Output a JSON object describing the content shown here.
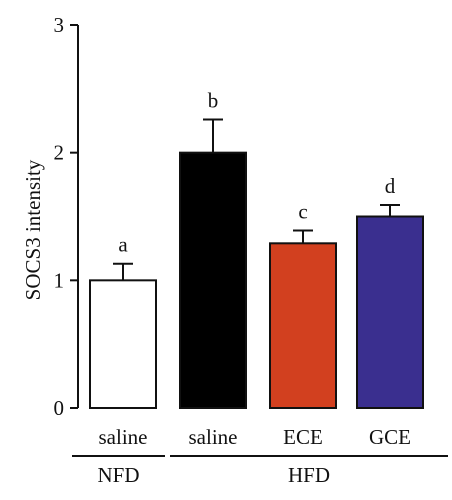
{
  "chart_data": {
    "type": "bar",
    "ylabel": "SOCS3 intensity",
    "ylim": [
      0,
      3
    ],
    "yticks": [
      "0",
      "1",
      "2",
      "3"
    ],
    "grid": false,
    "categories": [
      "saline",
      "saline",
      "ECE",
      "GCE"
    ],
    "groups": [
      {
        "label": "NFD",
        "categories": [
          0
        ]
      },
      {
        "label": "HFD",
        "categories": [
          1,
          2,
          3
        ]
      }
    ],
    "values": [
      1.0,
      2.0,
      1.29,
      1.5
    ],
    "errors": [
      0.13,
      0.26,
      0.1,
      0.09
    ],
    "significance": [
      "a",
      "b",
      "c",
      "d"
    ],
    "colors": [
      "#ffffff",
      "#000000",
      "#d2401f",
      "#3a2f8f"
    ]
  }
}
